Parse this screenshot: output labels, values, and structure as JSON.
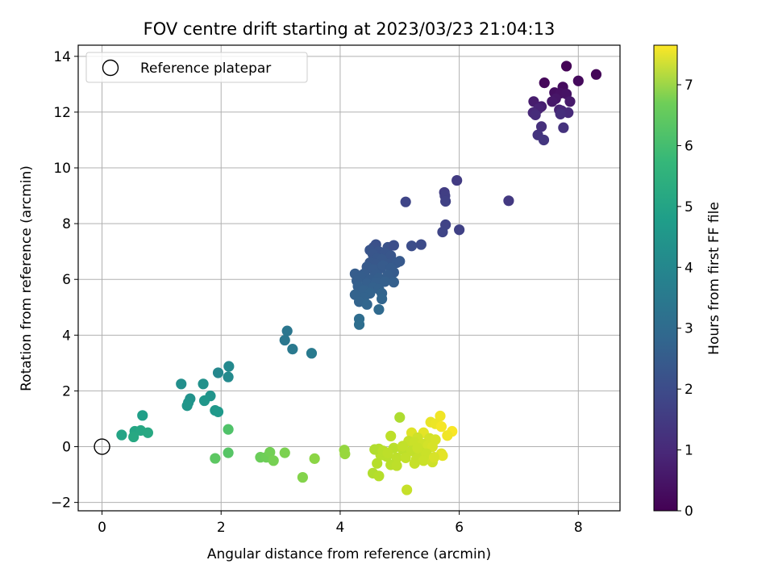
{
  "chart_data": {
    "type": "scatter",
    "title": "FOV centre drift starting at 2023/03/23 21:04:13",
    "xlabel": "Angular distance from reference (arcmin)",
    "ylabel": "Rotation from reference (arcmin)",
    "xlim": [
      -0.4,
      8.7
    ],
    "ylim": [
      -2.3,
      14.4
    ],
    "x_ticks": [
      0,
      2,
      4,
      6,
      8
    ],
    "y_ticks": [
      -2,
      0,
      2,
      4,
      6,
      8,
      10,
      12,
      14
    ],
    "grid": true,
    "legend": {
      "placement": "top-left",
      "entries": [
        {
          "label": "Reference platepar",
          "marker": "open-circle"
        }
      ]
    },
    "reference_point": {
      "x": 0,
      "y": 0
    },
    "colorbar": {
      "label": "Hours from first FF file",
      "min": 0,
      "max": 7.65,
      "ticks": [
        0,
        1,
        2,
        3,
        4,
        5,
        6,
        7
      ],
      "colormap": "viridis"
    },
    "series": [
      {
        "points": [
          [
            7.8,
            13.65
          ],
          [
            8.3,
            13.35
          ],
          [
            7.43,
            13.05
          ],
          [
            8.0,
            13.12
          ],
          [
            7.74,
            12.9
          ],
          [
            7.6,
            12.7
          ],
          [
            7.7,
            12.68
          ],
          [
            7.8,
            12.65
          ],
          [
            7.62,
            12.48
          ],
          [
            7.56,
            12.38
          ],
          [
            7.86,
            12.38
          ],
          [
            7.25,
            12.38
          ],
          [
            7.38,
            12.2
          ],
          [
            7.68,
            12.08
          ],
          [
            7.33,
            12.12
          ],
          [
            7.72,
            12.05
          ],
          [
            7.24,
            11.98
          ],
          [
            7.83,
            11.98
          ],
          [
            7.28,
            11.9
          ],
          [
            7.7,
            11.93
          ],
          [
            7.38,
            11.48
          ],
          [
            7.75,
            11.44
          ],
          [
            7.32,
            11.18
          ],
          [
            7.42,
            11.0
          ],
          [
            5.96,
            9.55
          ],
          [
            5.75,
            9.12
          ],
          [
            5.76,
            9.0
          ],
          [
            5.77,
            8.8
          ],
          [
            6.83,
            8.82
          ],
          [
            5.1,
            8.78
          ],
          [
            5.77,
            7.96
          ],
          [
            5.72,
            7.7
          ],
          [
            6.0,
            7.78
          ],
          [
            5.2,
            7.2
          ],
          [
            5.36,
            7.25
          ],
          [
            4.6,
            7.25
          ],
          [
            4.56,
            7.15
          ],
          [
            4.8,
            7.15
          ],
          [
            4.9,
            7.22
          ],
          [
            4.5,
            7.05
          ],
          [
            4.65,
            7.0
          ],
          [
            4.75,
            6.95
          ],
          [
            4.55,
            6.9
          ],
          [
            4.85,
            6.85
          ],
          [
            4.62,
            6.75
          ],
          [
            4.7,
            6.72
          ],
          [
            4.5,
            6.6
          ],
          [
            4.6,
            6.55
          ],
          [
            4.8,
            6.55
          ],
          [
            4.95,
            6.6
          ],
          [
            5.0,
            6.65
          ],
          [
            4.45,
            6.45
          ],
          [
            4.68,
            6.4
          ],
          [
            4.72,
            6.5
          ],
          [
            4.55,
            6.35
          ],
          [
            4.85,
            6.4
          ],
          [
            4.9,
            6.25
          ],
          [
            4.4,
            6.2
          ],
          [
            4.6,
            6.18
          ],
          [
            4.8,
            6.15
          ],
          [
            4.25,
            6.2
          ],
          [
            4.35,
            6.1
          ],
          [
            4.5,
            6.0
          ],
          [
            4.65,
            6.05
          ],
          [
            4.28,
            5.95
          ],
          [
            4.45,
            5.85
          ],
          [
            4.6,
            5.9
          ],
          [
            4.75,
            5.92
          ],
          [
            4.9,
            5.9
          ],
          [
            4.3,
            5.75
          ],
          [
            4.55,
            5.7
          ],
          [
            4.65,
            5.65
          ],
          [
            4.4,
            5.6
          ],
          [
            4.5,
            5.5
          ],
          [
            4.25,
            5.45
          ],
          [
            4.4,
            5.35
          ],
          [
            4.7,
            5.5
          ],
          [
            4.32,
            5.2
          ],
          [
            4.45,
            5.1
          ],
          [
            4.7,
            5.3
          ],
          [
            4.65,
            4.92
          ],
          [
            4.32,
            4.58
          ],
          [
            4.32,
            4.38
          ],
          [
            3.11,
            4.15
          ],
          [
            3.07,
            3.82
          ],
          [
            3.2,
            3.5
          ],
          [
            3.52,
            3.35
          ],
          [
            2.13,
            2.88
          ],
          [
            1.95,
            2.65
          ],
          [
            2.12,
            2.5
          ],
          [
            1.33,
            2.25
          ],
          [
            1.7,
            2.25
          ],
          [
            1.48,
            1.72
          ],
          [
            1.82,
            1.82
          ],
          [
            1.45,
            1.58
          ],
          [
            1.72,
            1.65
          ],
          [
            1.43,
            1.47
          ],
          [
            1.9,
            1.3
          ],
          [
            1.95,
            1.25
          ],
          [
            0.68,
            1.12
          ],
          [
            0.33,
            0.42
          ],
          [
            0.55,
            0.55
          ],
          [
            0.65,
            0.58
          ],
          [
            0.77,
            0.5
          ],
          [
            0.53,
            0.35
          ],
          [
            2.12,
            0.62
          ],
          [
            2.12,
            -0.22
          ],
          [
            1.9,
            -0.42
          ],
          [
            2.66,
            -0.38
          ],
          [
            2.76,
            -0.38
          ],
          [
            2.82,
            -0.2
          ],
          [
            2.88,
            -0.5
          ],
          [
            3.07,
            -0.22
          ],
          [
            3.37,
            -1.1
          ],
          [
            3.57,
            -0.43
          ],
          [
            4.07,
            -0.12
          ],
          [
            4.08,
            -0.26
          ],
          [
            5.0,
            1.05
          ],
          [
            5.68,
            1.1
          ],
          [
            5.52,
            0.88
          ],
          [
            5.6,
            0.82
          ],
          [
            5.88,
            0.55
          ],
          [
            5.7,
            0.72
          ],
          [
            5.2,
            0.5
          ],
          [
            5.4,
            0.5
          ],
          [
            5.8,
            0.4
          ],
          [
            4.85,
            0.38
          ],
          [
            5.3,
            0.32
          ],
          [
            5.5,
            0.3
          ],
          [
            5.6,
            0.25
          ],
          [
            5.15,
            0.2
          ],
          [
            5.25,
            0.15
          ],
          [
            5.38,
            0.1
          ],
          [
            5.48,
            0.05
          ],
          [
            5.55,
            0.0
          ],
          [
            4.65,
            -0.08
          ],
          [
            4.9,
            -0.05
          ],
          [
            5.05,
            -0.1
          ],
          [
            5.2,
            -0.15
          ],
          [
            5.35,
            -0.2
          ],
          [
            5.45,
            -0.25
          ],
          [
            5.7,
            -0.25
          ],
          [
            5.72,
            -0.32
          ],
          [
            4.68,
            -0.3
          ],
          [
            4.78,
            -0.35
          ],
          [
            4.95,
            -0.4
          ],
          [
            5.1,
            -0.4
          ],
          [
            5.28,
            -0.45
          ],
          [
            5.4,
            -0.5
          ],
          [
            5.55,
            -0.55
          ],
          [
            4.62,
            -0.6
          ],
          [
            4.85,
            -0.65
          ],
          [
            4.95,
            -0.68
          ],
          [
            5.25,
            -0.6
          ],
          [
            4.55,
            -0.95
          ],
          [
            4.65,
            -1.05
          ],
          [
            5.12,
            -1.55
          ],
          [
            4.58,
            -0.1
          ],
          [
            5.05,
            0.02
          ],
          [
            4.72,
            -0.15
          ],
          [
            5.3,
            -0.05
          ],
          [
            4.8,
            -0.22
          ],
          [
            5.58,
            -0.38
          ]
        ],
        "hours": [
          0.05,
          0.1,
          0.15,
          0.2,
          0.25,
          0.3,
          0.35,
          0.4,
          0.45,
          0.5,
          0.55,
          0.6,
          0.65,
          0.7,
          0.75,
          0.8,
          0.85,
          0.9,
          0.95,
          1.0,
          1.05,
          1.1,
          1.15,
          1.2,
          1.35,
          1.4,
          1.45,
          1.5,
          1.3,
          1.6,
          1.55,
          1.6,
          1.5,
          1.8,
          1.75,
          1.9,
          1.92,
          1.95,
          1.85,
          2.0,
          2.0,
          2.02,
          2.05,
          2.05,
          2.08,
          2.1,
          2.1,
          2.12,
          2.12,
          2.14,
          2.14,
          2.16,
          2.16,
          2.18,
          2.18,
          2.2,
          2.2,
          2.22,
          2.22,
          2.24,
          2.24,
          2.26,
          2.26,
          2.28,
          2.28,
          2.3,
          2.3,
          2.32,
          2.32,
          2.34,
          2.35,
          2.36,
          2.38,
          2.4,
          2.4,
          2.42,
          2.45,
          2.45,
          2.5,
          2.5,
          2.6,
          2.7,
          2.75,
          3.0,
          3.05,
          3.1,
          3.15,
          3.6,
          3.55,
          3.65,
          3.8,
          3.85,
          3.9,
          3.95,
          3.95,
          4.0,
          4.0,
          4.05,
          4.1,
          4.3,
          4.45,
          4.5,
          4.55,
          4.6,
          4.6,
          5.5,
          5.6,
          5.7,
          5.9,
          5.95,
          6.0,
          6.05,
          6.1,
          6.2,
          6.3,
          6.4,
          6.45,
          6.7,
          7.5,
          7.4,
          7.45,
          7.6,
          7.55,
          7.3,
          7.35,
          7.5,
          6.9,
          7.1,
          7.15,
          7.2,
          7.0,
          7.05,
          7.1,
          7.15,
          7.2,
          6.8,
          6.85,
          6.9,
          6.95,
          7.0,
          7.05,
          7.3,
          7.35,
          6.85,
          6.85,
          6.9,
          6.95,
          7.0,
          7.05,
          7.1,
          6.8,
          6.85,
          6.9,
          7.0,
          6.75,
          6.8,
          7.0,
          6.75,
          6.95,
          6.85,
          7.05,
          6.9,
          7.2
        ]
      }
    ]
  }
}
